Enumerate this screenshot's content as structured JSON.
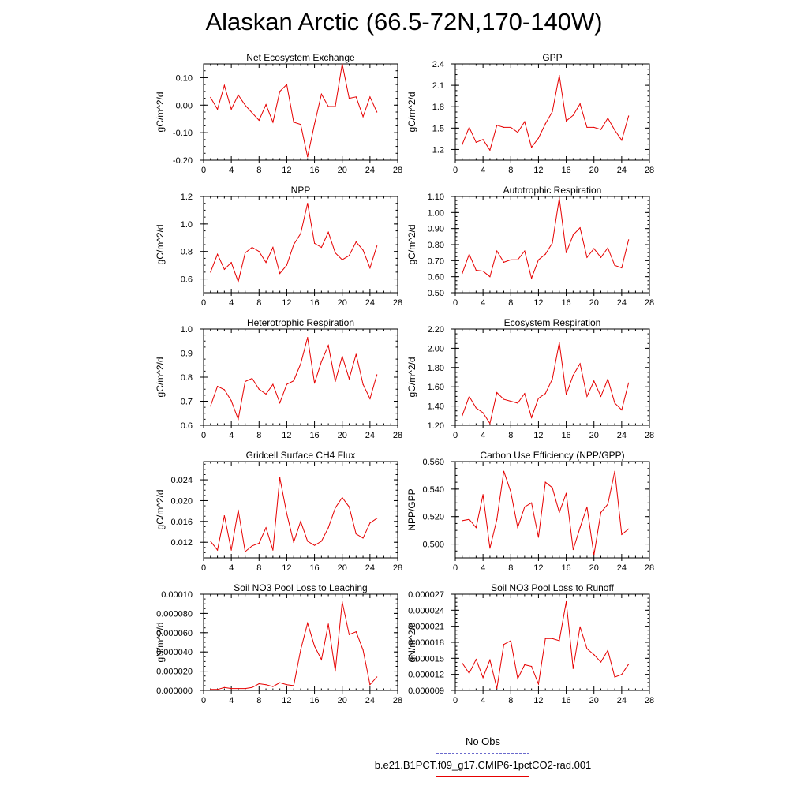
{
  "title": "Alaskan Arctic (66.5-72N,170-140W)",
  "legend": [
    {
      "label": "No Obs",
      "color": "#6a6acd",
      "dash": true
    },
    {
      "label": "b.e21.B1PCT.f09_g17.CMIP6-1pctCO2-rad.001",
      "color": "#e60000",
      "dash": false
    }
  ],
  "chart_data": [
    {
      "type": "line",
      "title": "Net Ecosystem Exchange",
      "ylabel": "gC/m^2/d",
      "xlim": [
        0,
        28
      ],
      "xticks": [
        0,
        4,
        8,
        12,
        16,
        20,
        24,
        28
      ],
      "xtick_labels": [
        "0",
        "4",
        "8",
        "12",
        "16",
        "20",
        "24",
        "28"
      ],
      "ylim": [
        -0.2,
        0.15
      ],
      "yticks": [
        -0.2,
        -0.1,
        0.0,
        0.1
      ],
      "ytick_labels": [
        "-0.20",
        "-0.10",
        "0.00",
        "0.10"
      ],
      "x": [
        1,
        2,
        3,
        4,
        5,
        6,
        7,
        8,
        9,
        10,
        11,
        12,
        13,
        14,
        15,
        16,
        17,
        18,
        19,
        20,
        21,
        22,
        23,
        24,
        25
      ],
      "series": [
        {
          "color": "#e60000",
          "values": [
            0.028,
            -0.015,
            0.072,
            -0.015,
            0.037,
            0.0,
            -0.028,
            -0.055,
            0.002,
            -0.062,
            0.05,
            0.075,
            -0.062,
            -0.07,
            -0.188,
            -0.068,
            0.04,
            -0.005,
            -0.005,
            0.15,
            0.025,
            0.03,
            -0.042,
            0.03,
            -0.025
          ]
        }
      ]
    },
    {
      "type": "line",
      "title": "GPP",
      "ylabel": "gC/m^2/d",
      "xlim": [
        0,
        28
      ],
      "xticks": [
        0,
        4,
        8,
        12,
        16,
        20,
        24,
        28
      ],
      "xtick_labels": [
        "0",
        "4",
        "8",
        "12",
        "16",
        "20",
        "24",
        "28"
      ],
      "ylim": [
        1.05,
        2.4
      ],
      "yticks": [
        1.2,
        1.5,
        1.8,
        2.1,
        2.4
      ],
      "ytick_labels": [
        "1.2",
        "1.5",
        "1.8",
        "2.1",
        "2.4"
      ],
      "x": [
        1,
        2,
        3,
        4,
        5,
        6,
        7,
        8,
        9,
        10,
        11,
        12,
        13,
        14,
        15,
        16,
        17,
        18,
        19,
        20,
        21,
        22,
        23,
        24,
        25
      ],
      "series": [
        {
          "color": "#e60000",
          "values": [
            1.27,
            1.51,
            1.3,
            1.34,
            1.19,
            1.54,
            1.51,
            1.51,
            1.44,
            1.59,
            1.23,
            1.36,
            1.56,
            1.73,
            2.24,
            1.6,
            1.68,
            1.84,
            1.51,
            1.51,
            1.48,
            1.64,
            1.47,
            1.33,
            1.67
          ]
        }
      ]
    },
    {
      "type": "line",
      "title": "NPP",
      "ylabel": "gC/m^2/d",
      "xlim": [
        0,
        28
      ],
      "xticks": [
        0,
        4,
        8,
        12,
        16,
        20,
        24,
        28
      ],
      "xtick_labels": [
        "0",
        "4",
        "8",
        "12",
        "16",
        "20",
        "24",
        "28"
      ],
      "ylim": [
        0.5,
        1.2
      ],
      "yticks": [
        0.6,
        0.8,
        1.0,
        1.2
      ],
      "ytick_labels": [
        "0.6",
        "0.8",
        "1.0",
        "1.2"
      ],
      "x": [
        1,
        2,
        3,
        4,
        5,
        6,
        7,
        8,
        9,
        10,
        11,
        12,
        13,
        14,
        15,
        16,
        17,
        18,
        19,
        20,
        21,
        22,
        23,
        24,
        25
      ],
      "series": [
        {
          "color": "#e60000",
          "values": [
            0.65,
            0.78,
            0.67,
            0.72,
            0.58,
            0.79,
            0.83,
            0.8,
            0.72,
            0.83,
            0.64,
            0.7,
            0.85,
            0.93,
            1.15,
            0.86,
            0.83,
            0.94,
            0.79,
            0.74,
            0.77,
            0.87,
            0.81,
            0.68,
            0.84
          ]
        }
      ]
    },
    {
      "type": "line",
      "title": "Autotrophic Respiration",
      "ylabel": "gC/m^2/d",
      "xlim": [
        0,
        28
      ],
      "xticks": [
        0,
        4,
        8,
        12,
        16,
        20,
        24,
        28
      ],
      "xtick_labels": [
        "0",
        "4",
        "8",
        "12",
        "16",
        "20",
        "24",
        "28"
      ],
      "ylim": [
        0.5,
        1.1
      ],
      "yticks": [
        0.5,
        0.6,
        0.7,
        0.8,
        0.9,
        1.0,
        1.1
      ],
      "ytick_labels": [
        "0.50",
        "0.60",
        "0.70",
        "0.80",
        "0.90",
        "1.00",
        "1.10"
      ],
      "x": [
        1,
        2,
        3,
        4,
        5,
        6,
        7,
        8,
        9,
        10,
        11,
        12,
        13,
        14,
        15,
        16,
        17,
        18,
        19,
        20,
        21,
        22,
        23,
        24,
        25
      ],
      "series": [
        {
          "color": "#e60000",
          "values": [
            0.62,
            0.74,
            0.64,
            0.635,
            0.6,
            0.76,
            0.69,
            0.705,
            0.705,
            0.76,
            0.59,
            0.705,
            0.74,
            0.81,
            1.09,
            0.75,
            0.86,
            0.905,
            0.72,
            0.775,
            0.72,
            0.78,
            0.67,
            0.655,
            0.83
          ]
        }
      ]
    },
    {
      "type": "line",
      "title": "Heterotrophic Respiration",
      "ylabel": "gC/m^2/d",
      "xlim": [
        0,
        28
      ],
      "xticks": [
        0,
        4,
        8,
        12,
        16,
        20,
        24,
        28
      ],
      "xtick_labels": [
        "0",
        "4",
        "8",
        "12",
        "16",
        "20",
        "24",
        "28"
      ],
      "ylim": [
        0.6,
        1.0
      ],
      "yticks": [
        0.6,
        0.7,
        0.8,
        0.9,
        1.0
      ],
      "ytick_labels": [
        "0.6",
        "0.7",
        "0.8",
        "0.9",
        "1.0"
      ],
      "x": [
        1,
        2,
        3,
        4,
        5,
        6,
        7,
        8,
        9,
        10,
        11,
        12,
        13,
        14,
        15,
        16,
        17,
        18,
        19,
        20,
        21,
        22,
        23,
        24,
        25
      ],
      "series": [
        {
          "color": "#e60000",
          "values": [
            0.68,
            0.762,
            0.748,
            0.702,
            0.625,
            0.782,
            0.795,
            0.75,
            0.73,
            0.77,
            0.693,
            0.77,
            0.785,
            0.855,
            0.965,
            0.775,
            0.865,
            0.932,
            0.782,
            0.887,
            0.793,
            0.895,
            0.77,
            0.71,
            0.81
          ]
        }
      ]
    },
    {
      "type": "line",
      "title": "Ecosystem Respiration",
      "ylabel": "gC/m^2/d",
      "xlim": [
        0,
        28
      ],
      "xticks": [
        0,
        4,
        8,
        12,
        16,
        20,
        24,
        28
      ],
      "xtick_labels": [
        "0",
        "4",
        "8",
        "12",
        "16",
        "20",
        "24",
        "28"
      ],
      "ylim": [
        1.2,
        2.2
      ],
      "yticks": [
        1.2,
        1.4,
        1.6,
        1.8,
        2.0,
        2.2
      ],
      "ytick_labels": [
        "1.20",
        "1.40",
        "1.60",
        "1.80",
        "2.00",
        "2.20"
      ],
      "x": [
        1,
        2,
        3,
        4,
        5,
        6,
        7,
        8,
        9,
        10,
        11,
        12,
        13,
        14,
        15,
        16,
        17,
        18,
        19,
        20,
        21,
        22,
        23,
        24,
        25
      ],
      "series": [
        {
          "color": "#e60000",
          "values": [
            1.3,
            1.5,
            1.38,
            1.33,
            1.22,
            1.54,
            1.47,
            1.45,
            1.43,
            1.53,
            1.28,
            1.48,
            1.53,
            1.68,
            2.06,
            1.52,
            1.72,
            1.84,
            1.5,
            1.66,
            1.5,
            1.68,
            1.43,
            1.36,
            1.64
          ]
        }
      ]
    },
    {
      "type": "line",
      "title": "Gridcell Surface CH4 Flux",
      "ylabel": "gC/m^2/d",
      "xlim": [
        0,
        28
      ],
      "xticks": [
        0,
        4,
        8,
        12,
        16,
        20,
        24,
        28
      ],
      "xtick_labels": [
        "0",
        "4",
        "8",
        "12",
        "16",
        "20",
        "24",
        "28"
      ],
      "ylim": [
        0.009,
        0.0275
      ],
      "yticks": [
        0.012,
        0.016,
        0.02,
        0.024
      ],
      "ytick_labels": [
        "0.012",
        "0.016",
        "0.020",
        "0.024"
      ],
      "x": [
        1,
        2,
        3,
        4,
        5,
        6,
        7,
        8,
        9,
        10,
        11,
        12,
        13,
        14,
        15,
        16,
        17,
        18,
        19,
        20,
        21,
        22,
        23,
        24,
        25
      ],
      "series": [
        {
          "color": "#e60000",
          "values": [
            0.0122,
            0.0105,
            0.0171,
            0.0105,
            0.0182,
            0.0102,
            0.0113,
            0.0118,
            0.0148,
            0.0105,
            0.0244,
            0.0175,
            0.012,
            0.016,
            0.0122,
            0.0114,
            0.0122,
            0.0148,
            0.0186,
            0.0206,
            0.0188,
            0.0136,
            0.0128,
            0.0157,
            0.0166
          ]
        }
      ]
    },
    {
      "type": "line",
      "title": "Carbon Use Efficiency (NPP/GPP)",
      "ylabel": "NPP/GPP",
      "xlim": [
        0,
        28
      ],
      "xticks": [
        0,
        4,
        8,
        12,
        16,
        20,
        24,
        28
      ],
      "xtick_labels": [
        "0",
        "4",
        "8",
        "12",
        "16",
        "20",
        "24",
        "28"
      ],
      "ylim": [
        0.49,
        0.56
      ],
      "yticks": [
        0.5,
        0.52,
        0.54,
        0.56
      ],
      "ytick_labels": [
        "0.500",
        "0.520",
        "0.540",
        "0.560"
      ],
      "x": [
        1,
        2,
        3,
        4,
        5,
        6,
        7,
        8,
        9,
        10,
        11,
        12,
        13,
        14,
        15,
        16,
        17,
        18,
        19,
        20,
        21,
        22,
        23,
        24,
        25
      ],
      "series": [
        {
          "color": "#e60000",
          "values": [
            0.517,
            0.518,
            0.512,
            0.536,
            0.497,
            0.518,
            0.553,
            0.538,
            0.512,
            0.527,
            0.53,
            0.505,
            0.545,
            0.541,
            0.523,
            0.537,
            0.496,
            0.512,
            0.527,
            0.492,
            0.523,
            0.529,
            0.553,
            0.507,
            0.511
          ]
        }
      ]
    },
    {
      "type": "line",
      "title": "Soil NO3 Pool Loss to Leaching",
      "ylabel": "gN/m^2/d",
      "xlim": [
        0,
        28
      ],
      "xticks": [
        0,
        4,
        8,
        12,
        16,
        20,
        24,
        28
      ],
      "xtick_labels": [
        "0",
        "4",
        "8",
        "12",
        "16",
        "20",
        "24",
        "28"
      ],
      "ylim": [
        0,
        0.0001
      ],
      "yticks": [
        0,
        2e-05,
        4e-05,
        6e-05,
        8e-05,
        0.0001
      ],
      "ytick_labels": [
        "0.000000",
        "0.000020",
        "0.000040",
        "0.000060",
        "0.000080",
        "0.00010"
      ],
      "x": [
        1,
        2,
        3,
        4,
        5,
        6,
        7,
        8,
        9,
        10,
        11,
        12,
        13,
        14,
        15,
        16,
        17,
        18,
        19,
        20,
        21,
        22,
        23,
        24,
        25
      ],
      "series": [
        {
          "color": "#e60000",
          "values": [
            1e-06,
            1e-06,
            3e-06,
            2e-06,
            2e-06,
            2e-06,
            3e-06,
            7e-06,
            6e-06,
            4e-06,
            8e-06,
            6e-06,
            5e-06,
            4.2e-05,
            7e-05,
            4.6e-05,
            3.2e-05,
            6.9e-05,
            2e-05,
            9.2e-05,
            5.8e-05,
            6.1e-05,
            4.2e-05,
            6e-06,
            1.4e-05
          ]
        }
      ]
    },
    {
      "type": "line",
      "title": "Soil NO3 Pool Loss to Runoff",
      "ylabel": "gN/m^2/d",
      "xlim": [
        0,
        28
      ],
      "xticks": [
        0,
        4,
        8,
        12,
        16,
        20,
        24,
        28
      ],
      "xtick_labels": [
        "0",
        "4",
        "8",
        "12",
        "16",
        "20",
        "24",
        "28"
      ],
      "ylim": [
        9e-06,
        2.7e-05
      ],
      "yticks": [
        9e-06,
        1.2e-05,
        1.5e-05,
        1.8e-05,
        2.1e-05,
        2.4e-05,
        2.7e-05
      ],
      "ytick_labels": [
        "0.000009",
        "0.000012",
        "0.000015",
        "0.000018",
        "0.000021",
        "0.000024",
        "0.000027"
      ],
      "x": [
        1,
        2,
        3,
        4,
        5,
        6,
        7,
        8,
        9,
        10,
        11,
        12,
        13,
        14,
        15,
        16,
        17,
        18,
        19,
        20,
        21,
        22,
        23,
        24,
        25
      ],
      "series": [
        {
          "color": "#e60000",
          "values": [
            1.41e-05,
            1.22e-05,
            1.48e-05,
            1.14e-05,
            1.47e-05,
            9.4e-06,
            1.76e-05,
            1.83e-05,
            1.12e-05,
            1.38e-05,
            1.35e-05,
            1.02e-05,
            1.87e-05,
            1.87e-05,
            1.83e-05,
            2.56e-05,
            1.31e-05,
            2.09e-05,
            1.68e-05,
            1.57e-05,
            1.43e-05,
            1.65e-05,
            1.15e-05,
            1.2e-05,
            1.39e-05
          ]
        }
      ]
    }
  ]
}
